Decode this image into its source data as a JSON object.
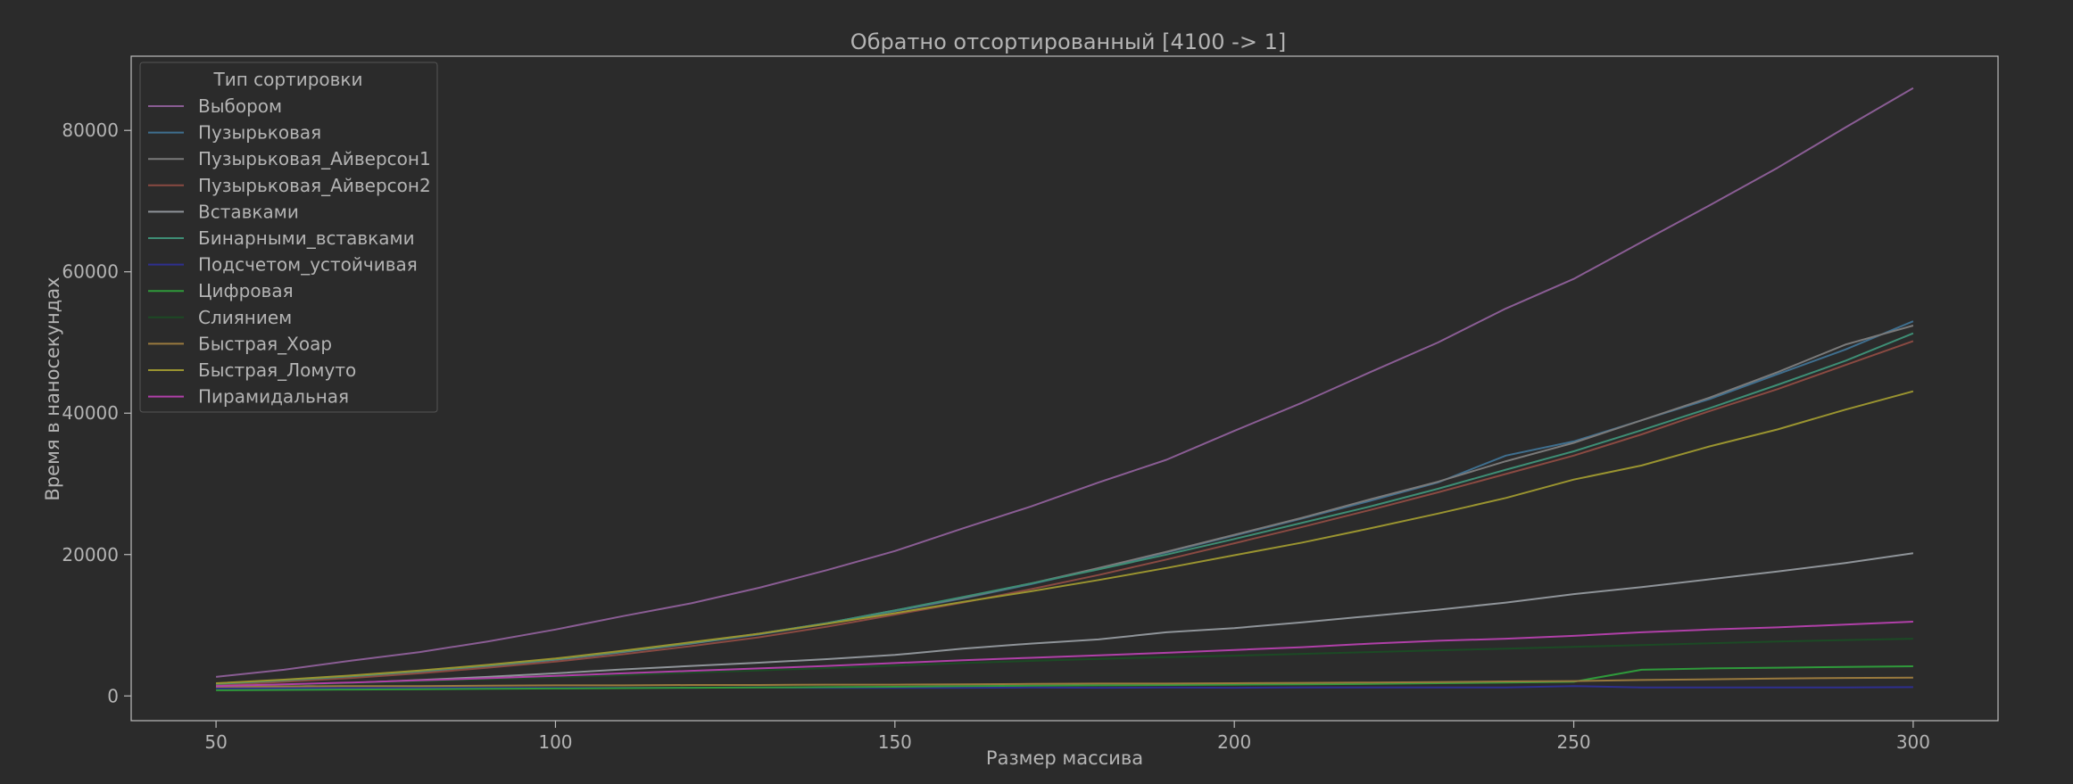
{
  "chart_data": {
    "type": "line",
    "title": "Обратно отсортированный [4100 -> 1]",
    "xlabel": "Размер массива",
    "ylabel": "Время в наносекундах",
    "xlim": [
      37.5,
      312.5
    ],
    "ylim": [
      -3500,
      90500
    ],
    "xticks": [
      50,
      100,
      150,
      200,
      250,
      300
    ],
    "yticks": [
      0,
      20000,
      40000,
      60000,
      80000
    ],
    "grid": false,
    "legend": {
      "title": "Тип сортировки",
      "position": "top-left"
    },
    "x": [
      50,
      60,
      70,
      80,
      90,
      100,
      110,
      120,
      130,
      140,
      150,
      160,
      170,
      180,
      190,
      200,
      210,
      220,
      230,
      240,
      250,
      260,
      270,
      280,
      290,
      300
    ],
    "series": [
      {
        "name": "Выбором",
        "color": "#8a5d94",
        "values": [
          2700,
          3700,
          5000,
          6200,
          7700,
          9400,
          11300,
          13100,
          15300,
          17800,
          20500,
          23700,
          26800,
          30200,
          33400,
          37500,
          41500,
          45800,
          50000,
          54800,
          59000,
          64200,
          69400,
          74700,
          80400,
          86000
        ]
      },
      {
        "name": "Пузырьковая",
        "color": "#3f6f8f",
        "values": [
          1600,
          2100,
          2700,
          3400,
          4200,
          5100,
          6200,
          7400,
          8700,
          10200,
          12000,
          13800,
          15800,
          18000,
          20300,
          22700,
          25100,
          27600,
          30200,
          34000,
          36000,
          39000,
          42000,
          45500,
          49000,
          53000
        ]
      },
      {
        "name": "Пузырьковая_Айверсон1",
        "color": "#7a7a7a",
        "values": [
          1650,
          2150,
          2750,
          3450,
          4250,
          5150,
          6250,
          7450,
          8800,
          10300,
          12100,
          13900,
          15900,
          18100,
          20400,
          22800,
          25200,
          27800,
          30300,
          33200,
          35800,
          39000,
          42200,
          45800,
          49700,
          52400
        ]
      },
      {
        "name": "Пузырьковая_Айверсон2",
        "color": "#8a4a42",
        "values": [
          1500,
          2000,
          2550,
          3200,
          4000,
          4850,
          5900,
          7050,
          8300,
          9800,
          11500,
          13200,
          15100,
          17100,
          19300,
          21600,
          23900,
          26300,
          28800,
          31400,
          34000,
          37000,
          40300,
          43400,
          46800,
          50200
        ]
      },
      {
        "name": "Вставками",
        "color": "#8f9499",
        "values": [
          1200,
          1500,
          1850,
          2250,
          2700,
          3200,
          3750,
          4250,
          4700,
          5200,
          5800,
          6700,
          7400,
          8000,
          9000,
          9600,
          10400,
          11300,
          12200,
          13200,
          14400,
          15400,
          16500,
          17600,
          18800,
          20200
        ]
      },
      {
        "name": "Бинарными_вставками",
        "color": "#3e8e75",
        "values": [
          1700,
          2200,
          2800,
          3500,
          4300,
          5200,
          6300,
          7500,
          8800,
          10300,
          12100,
          14000,
          15900,
          17900,
          20000,
          22200,
          24500,
          26800,
          29300,
          32000,
          34600,
          37600,
          40700,
          44000,
          47400,
          51300
        ]
      },
      {
        "name": "Подсчетом_устойчивая",
        "color": "#2e2f8f",
        "values": [
          1100,
          1100,
          1100,
          1150,
          1150,
          1150,
          1150,
          1150,
          1200,
          1150,
          1150,
          1150,
          1200,
          1150,
          1200,
          1150,
          1200,
          1200,
          1200,
          1200,
          1400,
          1200,
          1200,
          1200,
          1200,
          1250
        ]
      },
      {
        "name": "Цифровая",
        "color": "#2f9a3b",
        "values": [
          800,
          850,
          900,
          950,
          1000,
          1050,
          1100,
          1150,
          1200,
          1250,
          1300,
          1400,
          1450,
          1500,
          1550,
          1600,
          1650,
          1700,
          1800,
          1900,
          2000,
          3700,
          3900,
          4000,
          4100,
          4200
        ]
      },
      {
        "name": "Слиянием",
        "color": "#1c4a25",
        "values": [
          1300,
          1550,
          1800,
          2050,
          2350,
          2650,
          2950,
          3300,
          3600,
          3950,
          4300,
          4650,
          4950,
          5250,
          5500,
          5700,
          5950,
          6200,
          6450,
          6700,
          6950,
          7200,
          7450,
          7700,
          7900,
          8100
        ]
      },
      {
        "name": "Быстрая_Хоар",
        "color": "#9a7a3e",
        "values": [
          1300,
          1350,
          1400,
          1400,
          1450,
          1500,
          1500,
          1550,
          1550,
          1600,
          1600,
          1650,
          1700,
          1750,
          1750,
          1800,
          1850,
          1900,
          1950,
          2050,
          2100,
          2250,
          2350,
          2450,
          2550,
          2600
        ]
      },
      {
        "name": "Быстрая_Ломуто",
        "color": "#9a9430",
        "values": [
          1800,
          2300,
          2900,
          3600,
          4400,
          5300,
          6400,
          7600,
          8800,
          10200,
          11700,
          13300,
          14800,
          16400,
          18100,
          19900,
          21700,
          23700,
          25800,
          28000,
          30600,
          32600,
          35300,
          37700,
          40500,
          43100
        ]
      },
      {
        "name": "Пирамидальная",
        "color": "#b040a8",
        "values": [
          1400,
          1650,
          1900,
          2200,
          2500,
          2850,
          3200,
          3550,
          3900,
          4250,
          4650,
          5050,
          5400,
          5750,
          6100,
          6500,
          6900,
          7400,
          7800,
          8100,
          8500,
          9000,
          9400,
          9700,
          10100,
          10500
        ]
      }
    ]
  }
}
